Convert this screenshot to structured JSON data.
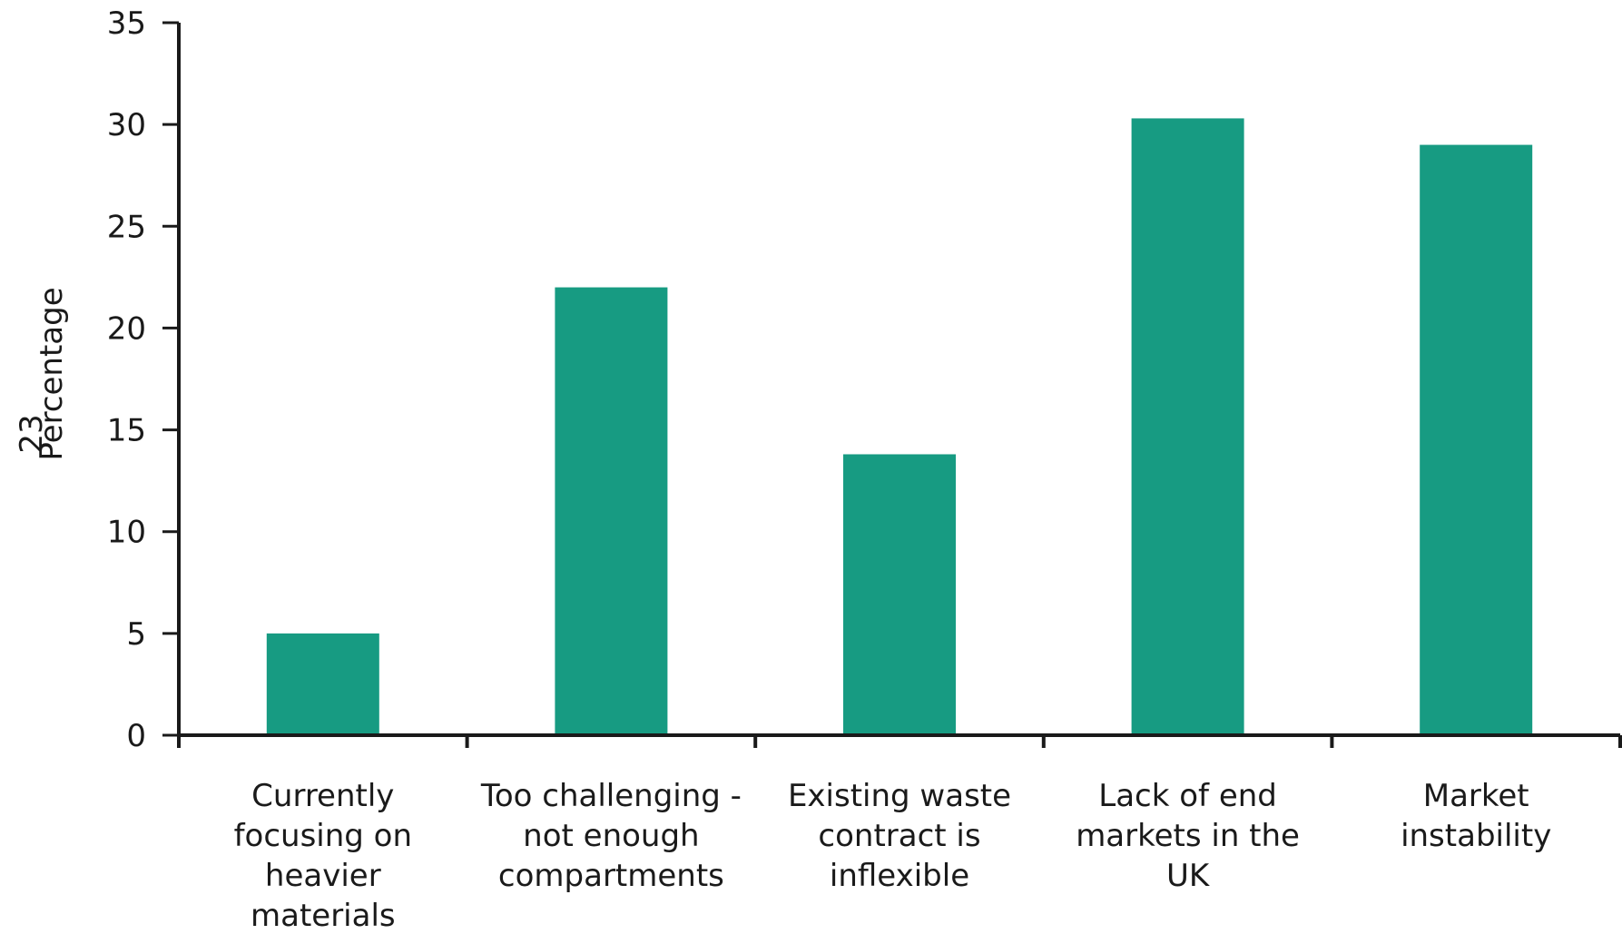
{
  "page_number": "23",
  "chart_data": {
    "type": "bar",
    "categories": [
      "Currently focusing on heavier materials",
      "Too challenging - not enough compartments",
      "Existing waste contract is inflexible",
      "Lack of end markets in the UK",
      "Market instability"
    ],
    "category_lines": [
      [
        "Currently",
        "focusing on",
        "heavier",
        "materials"
      ],
      [
        "Too challenging -",
        "not enough",
        "compartments"
      ],
      [
        "Existing waste",
        "contract is",
        "inflexible"
      ],
      [
        "Lack of end",
        "markets in the",
        "UK"
      ],
      [
        "Market",
        "instability"
      ]
    ],
    "values": [
      5,
      22,
      13.8,
      30.3,
      29
    ],
    "ylabel": "Percentage",
    "xlabel": "",
    "ylim": [
      0,
      35
    ],
    "yticks": [
      0,
      5,
      10,
      15,
      20,
      25,
      30,
      35
    ],
    "bar_color": "#179b82",
    "axis_color": "#1a1a1a",
    "grid": false,
    "legend": "none"
  }
}
